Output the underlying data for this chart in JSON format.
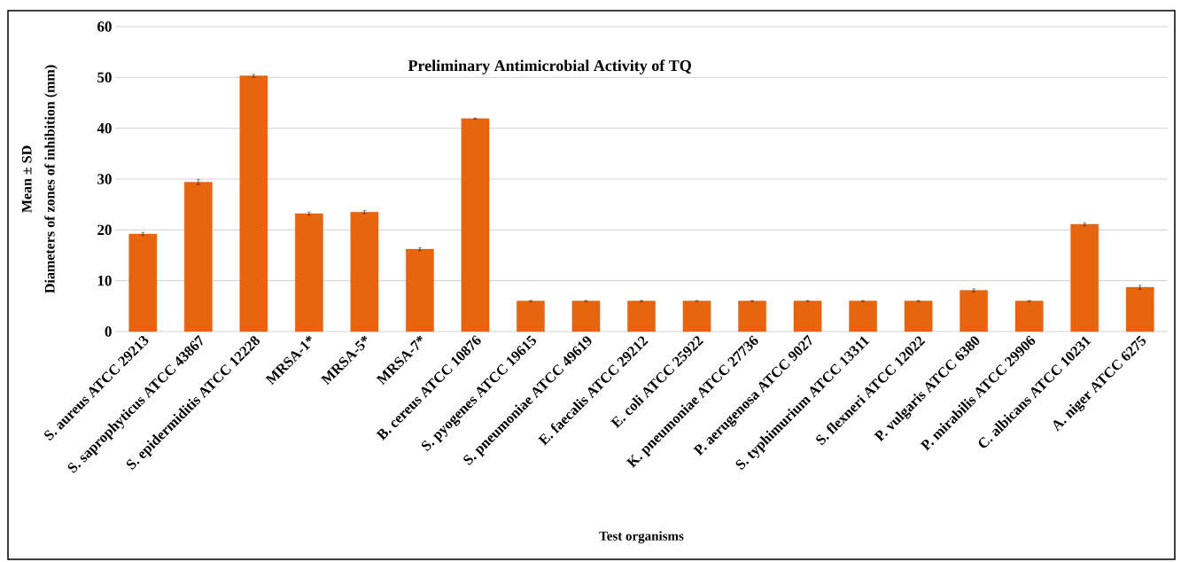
{
  "chart_data": {
    "type": "bar",
    "title": "Preliminary Antimicrobial Activity of TQ",
    "xlabel": "Test organisms",
    "ylabel": "Diameters of zones of inhibition (mm)",
    "annotations": [
      "Mean ± SD"
    ],
    "categories": [
      "S. aureus ATCC 29213",
      "S. saprophyticus ATCC 43867",
      "S. epidermiditis ATCC 12228",
      "MRSA-1*",
      "MRSA-5*",
      "MRSA-7*",
      "B. cereus ATCC 10876",
      "S. pyogenes ATCC 19615",
      "S. pneumoniae ATCC 49619",
      "E. faecalis ATCC 29212",
      "E. coli ATCC 25922",
      "K. pneumoniae ATCC 27736",
      "P. aerugenosa ATCC 9027",
      "S. typhimurium ATCC 13311",
      "S. flexneri ATCC 12022",
      "P. vulgaris ATCC 6380",
      "P. mirabilis ATCC 29906",
      "C. albicans ATCC 10231",
      "A. niger ATCC 6275"
    ],
    "values": [
      19.2,
      29.4,
      50.3,
      23.2,
      23.5,
      16.2,
      41.9,
      6,
      6,
      6,
      6,
      6,
      6,
      6,
      6,
      8.1,
      6,
      21.1,
      8.7
    ],
    "errors": [
      0.3,
      0.5,
      0.3,
      0.3,
      0.3,
      0.3,
      0.1,
      0.1,
      0.1,
      0.1,
      0.1,
      0.1,
      0.1,
      0.1,
      0.1,
      0.3,
      0.1,
      0.3,
      0.4
    ],
    "color": "#e8650f",
    "ylim": [
      0,
      60
    ],
    "yticks": [
      0,
      10,
      20,
      30,
      40,
      50,
      60
    ],
    "grid": "y"
  }
}
